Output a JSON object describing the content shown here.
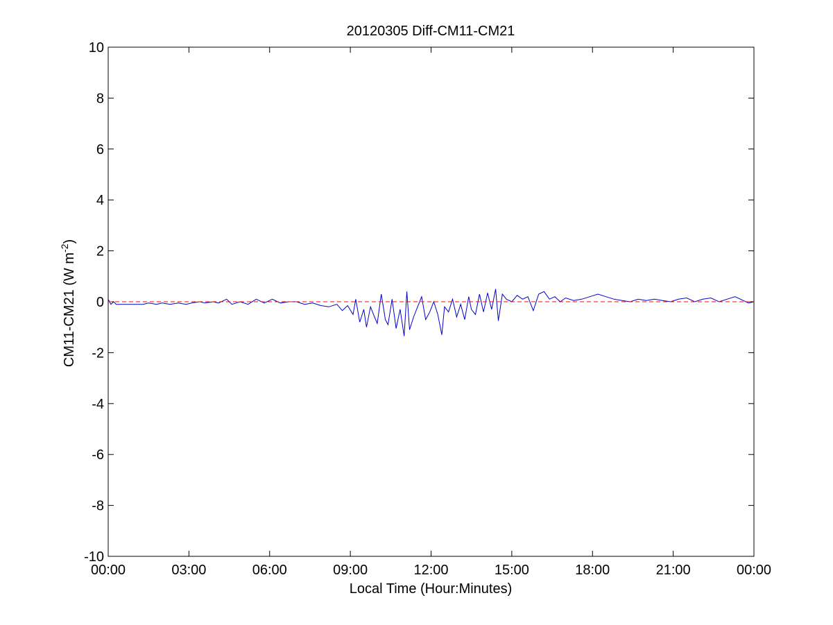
{
  "chart_data": {
    "type": "line",
    "title": "20120305 Diff-CM11-CM21",
    "xlabel": "Local Time (Hour:Minutes)",
    "ylabel_main": "CM11-CM21 (W m",
    "ylabel_sup": "-2",
    "ylabel_close": ")",
    "xlim": [
      0,
      24
    ],
    "ylim": [
      -10,
      10
    ],
    "x_ticks": [
      {
        "value": 0,
        "label": "00:00"
      },
      {
        "value": 3,
        "label": "03:00"
      },
      {
        "value": 6,
        "label": "06:00"
      },
      {
        "value": 9,
        "label": "09:00"
      },
      {
        "value": 12,
        "label": "12:00"
      },
      {
        "value": 15,
        "label": "15:00"
      },
      {
        "value": 18,
        "label": "18:00"
      },
      {
        "value": 21,
        "label": "21:00"
      },
      {
        "value": 24,
        "label": "00:00"
      }
    ],
    "y_ticks": [
      {
        "value": 10,
        "label": "10"
      },
      {
        "value": 8,
        "label": "8"
      },
      {
        "value": 6,
        "label": "6"
      },
      {
        "value": 4,
        "label": "4"
      },
      {
        "value": 2,
        "label": "2"
      },
      {
        "value": 0,
        "label": "0"
      },
      {
        "value": -2,
        "label": "-2"
      },
      {
        "value": -4,
        "label": "-4"
      },
      {
        "value": -6,
        "label": "-6"
      },
      {
        "value": -8,
        "label": "-8"
      },
      {
        "value": -10,
        "label": "-10"
      }
    ],
    "grid": false,
    "series": [
      {
        "color": "#0000cc",
        "x": [
          0.0,
          0.1,
          0.2,
          0.3,
          0.5,
          0.7,
          0.9,
          1.1,
          1.3,
          1.5,
          1.8,
          2.0,
          2.3,
          2.6,
          2.9,
          3.1,
          3.4,
          3.6,
          3.9,
          4.1,
          4.4,
          4.6,
          4.9,
          5.2,
          5.5,
          5.8,
          6.1,
          6.4,
          6.7,
          7.0,
          7.3,
          7.6,
          7.9,
          8.2,
          8.5,
          8.7,
          8.9,
          9.1,
          9.2,
          9.35,
          9.5,
          9.6,
          9.75,
          9.9,
          10.0,
          10.15,
          10.3,
          10.4,
          10.55,
          10.7,
          10.85,
          11.0,
          11.1,
          11.2,
          11.35,
          11.5,
          11.65,
          11.8,
          11.95,
          12.1,
          12.25,
          12.4,
          12.5,
          12.65,
          12.8,
          12.95,
          13.1,
          13.25,
          13.4,
          13.5,
          13.65,
          13.8,
          13.95,
          14.1,
          14.25,
          14.4,
          14.5,
          14.65,
          14.8,
          15.0,
          15.2,
          15.4,
          15.6,
          15.8,
          16.0,
          16.2,
          16.4,
          16.6,
          16.8,
          17.0,
          17.3,
          17.6,
          17.9,
          18.2,
          18.5,
          18.8,
          19.1,
          19.4,
          19.7,
          20.0,
          20.3,
          20.6,
          20.9,
          21.2,
          21.5,
          21.8,
          22.1,
          22.4,
          22.7,
          23.0,
          23.3,
          23.6,
          23.8,
          24.0
        ],
        "y": [
          0.1,
          -0.1,
          0.0,
          -0.1,
          -0.1,
          -0.1,
          -0.1,
          -0.1,
          -0.1,
          -0.05,
          -0.1,
          -0.05,
          -0.1,
          -0.05,
          -0.1,
          -0.05,
          0.0,
          -0.05,
          0.0,
          -0.05,
          0.1,
          -0.1,
          0.0,
          -0.1,
          0.1,
          -0.05,
          0.1,
          -0.05,
          0.0,
          0.0,
          -0.1,
          -0.05,
          -0.15,
          -0.2,
          -0.1,
          -0.35,
          -0.15,
          -0.5,
          0.1,
          -0.8,
          -0.3,
          -1.0,
          -0.2,
          -0.6,
          -0.85,
          0.3,
          -0.7,
          -0.9,
          0.1,
          -1.05,
          -0.3,
          -1.35,
          0.4,
          -1.1,
          -0.6,
          -0.2,
          0.2,
          -0.7,
          -0.4,
          0.0,
          -0.5,
          -1.3,
          -0.2,
          -0.4,
          0.1,
          -0.6,
          -0.1,
          -0.7,
          0.2,
          -0.3,
          -0.5,
          0.3,
          -0.4,
          0.35,
          -0.3,
          0.5,
          -0.75,
          0.3,
          0.1,
          0.0,
          0.25,
          0.1,
          0.2,
          -0.35,
          0.3,
          0.4,
          0.1,
          0.2,
          0.0,
          0.15,
          0.05,
          0.1,
          0.2,
          0.3,
          0.2,
          0.1,
          0.05,
          0.0,
          0.1,
          0.05,
          0.1,
          0.05,
          0.0,
          0.1,
          0.15,
          0.0,
          0.1,
          0.15,
          0.0,
          0.1,
          0.2,
          0.05,
          -0.05,
          0.0
        ]
      },
      {
        "color": "#ff0000",
        "style": "dashed",
        "x": [
          0,
          24
        ],
        "y": [
          0,
          0
        ]
      }
    ]
  }
}
